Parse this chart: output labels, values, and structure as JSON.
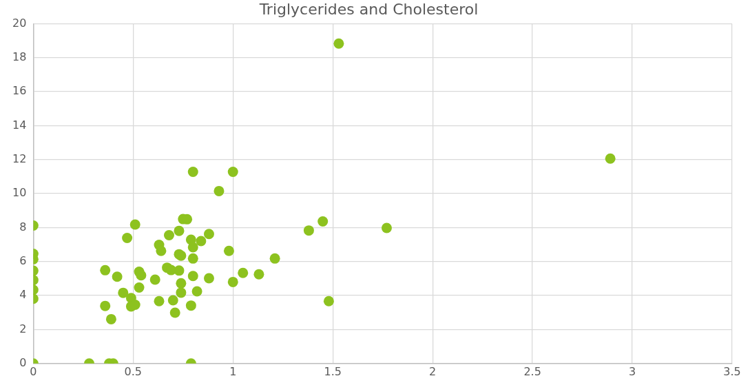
{
  "chart_data": {
    "type": "scatter",
    "title": "Triglycerides and Cholesterol",
    "x": [
      0,
      0.28,
      0.38,
      0.4,
      0.79,
      0,
      0,
      0,
      0,
      0,
      0,
      0,
      0.51,
      0.47,
      0.36,
      0.42,
      0.36,
      0.39,
      0.45,
      0.49,
      0.49,
      0.51,
      0.53,
      0.54,
      0.53,
      0.61,
      0.63,
      0.64,
      0.63,
      0.68,
      0.67,
      0.69,
      0.7,
      0.71,
      0.73,
      0.75,
      0.77,
      0.73,
      0.74,
      0.73,
      0.74,
      0.74,
      0.79,
      0.8,
      0.8,
      0.8,
      0.79,
      0.82,
      0.84,
      0.88,
      0.88,
      0.98,
      1.0,
      1.05,
      1.13,
      1.21,
      1.38,
      1.45,
      1.48,
      0.8,
      1.0,
      0.93,
      1.53,
      2.89,
      1.77
    ],
    "series": [
      {
        "color": "#8dc21f",
        "values": [
          0,
          0,
          0,
          0,
          0,
          8.12,
          6.46,
          6.14,
          5.46,
          4.91,
          4.34,
          3.81,
          8.18,
          7.39,
          5.49,
          5.11,
          3.39,
          2.61,
          4.16,
          3.85,
          3.36,
          3.46,
          5.4,
          5.19,
          4.47,
          4.94,
          6.98,
          6.63,
          3.67,
          7.55,
          5.64,
          5.5,
          3.72,
          2.99,
          7.81,
          8.5,
          8.49,
          6.43,
          6.35,
          5.47,
          4.72,
          4.17,
          7.29,
          6.84,
          6.18,
          5.15,
          3.41,
          4.25,
          7.21,
          7.62,
          5.02,
          6.63,
          4.8,
          5.33,
          5.25,
          6.18,
          7.83,
          8.36,
          3.67,
          11.28,
          11.28,
          10.15,
          18.83,
          12.06,
          7.98
        ]
      }
    ],
    "xlim": [
      0,
      3.5
    ],
    "xticks": [
      0,
      0.5,
      1,
      1.5,
      2,
      2.5,
      3,
      3.5
    ],
    "ylim": [
      0,
      20
    ],
    "yticks": [
      0,
      2,
      4,
      6,
      8,
      10,
      12,
      14,
      16,
      18,
      20
    ],
    "grid": true,
    "marker": "circle",
    "legend": false
  }
}
